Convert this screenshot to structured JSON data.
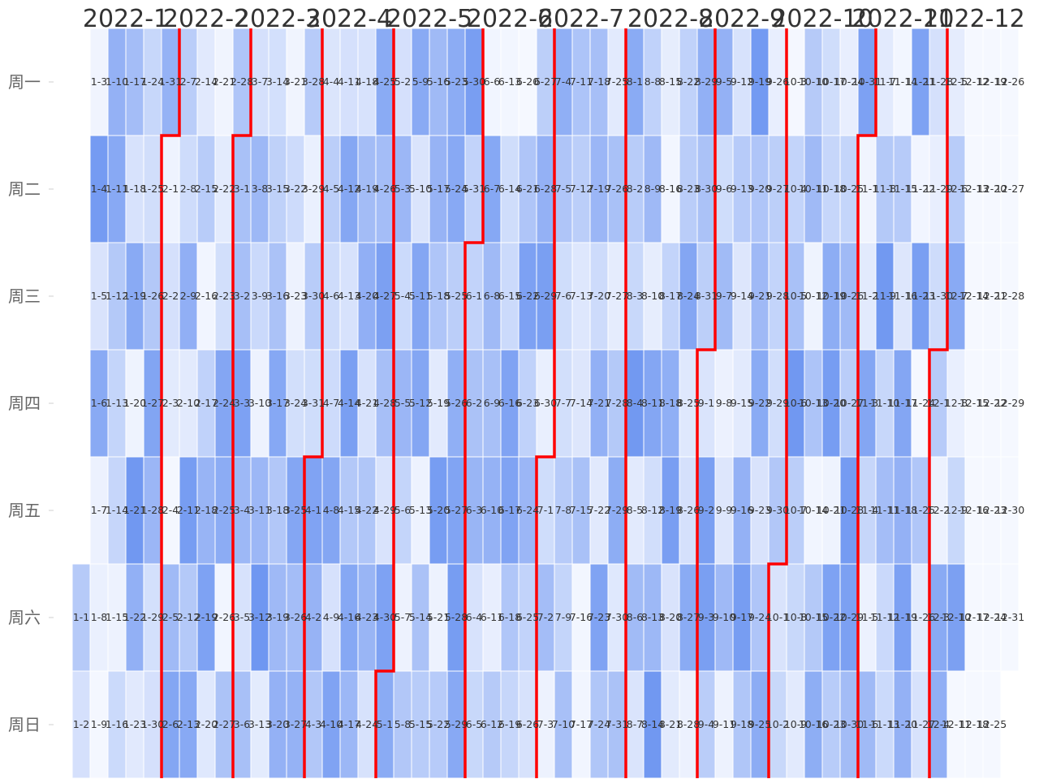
{
  "chart_data": {
    "type": "heatmap",
    "title": "",
    "year": 2022,
    "month_labels": [
      "2022-1",
      "2022-2",
      "2022-3",
      "2022-4",
      "2022-5",
      "2022-6",
      "2022-7",
      "2022-8",
      "2022-9",
      "2022-10",
      "2022-11",
      "2022-12"
    ],
    "weekday_labels": [
      "周一",
      "周二",
      "周三",
      "周四",
      "周五",
      "周六",
      "周日"
    ],
    "cell_label_format": "M-D",
    "color_scale": [
      "#f5f8ff",
      "#6e96f1"
    ],
    "value_range": [
      0,
      1
    ],
    "grid": false,
    "month_separators": true,
    "separator_color": "#ff0000",
    "values": [
      0.47,
      0.24,
      0.04,
      0.95,
      0.21,
      0.8,
      0.07,
      0.08,
      0.01,
      0.72,
      0.81,
      0.48,
      0.36,
      0.35,
      0.06,
      0.31,
      0.6,
      0.22,
      0.8,
      0.05,
      0.98,
      0.73,
      0.15,
      0.34,
      0.27,
      0.49,
      0.85,
      0.67,
      0.25,
      0.24,
      0.71,
      0.05,
      0.24,
      0.14,
      0.01,
      0.63,
      0.84,
      0.44,
      0.29,
      0.74,
      0.14,
      0.93,
      0.48,
      0.81,
      0.15,
      0.45,
      0.03,
      0.39,
      0.69,
      0.88,
      0.16,
      0.04,
      0.13,
      0.26,
      0.84,
      0.78,
      0.03,
      0.54,
      0.52,
      0.56,
      0.58,
      0.89,
      0.65,
      0.22,
      0.57,
      0.24,
      0.65,
      0.32,
      0.06,
      0.66,
      0.99,
      0.13,
      0.25,
      0.4,
      0.55,
      0.82,
      0.5,
      0.64,
      0.72,
      0.04,
      0.3,
      0.06,
      0.26,
      0.84,
      0.6,
      0.71,
      0.46,
      0.08,
      0.45,
      0.28,
      0.87,
      0.7,
      0.5,
      0.19,
      0.43,
      0.29,
      0.3,
      0.84,
      0.23,
      0.87,
      0.24,
      0.83,
      0.22,
      0.91,
      0.49,
      0.82,
      0.66,
      0.22,
      0.61,
      0.74,
      0.22,
      0.51,
      0.68,
      0.22,
      0.79,
      0.6,
      0.9,
      0.58,
      0.21,
      0.88,
      0.79,
      0.24,
      0.66,
      0.31,
      0.67,
      0.36,
      0.06,
      0.5,
      0.8,
      0.2,
      0.84,
      0.84,
      0.06,
      0.55,
      0.45,
      0.63,
      0.7,
      0.52,
      0.14,
      0.93,
      0.06,
      0.46,
      0.78,
      0.81,
      0.43,
      0.75,
      0.86,
      0.93,
      0.81,
      0.92,
      0.38,
      0.38,
      0.55,
      0.68,
      0.22,
      0.33,
      0.03,
      0.82,
      0.63,
      0.57,
      0.71,
      0.1,
      0.47,
      0.02,
      0.28,
      0.31,
      0.87,
      0.87,
      0.51,
      0.35,
      0.0,
      0.52,
      0.89,
      0.39,
      0.67,
      0.38,
      0.22,
      0.42,
      0.72,
      0.91,
      0.09,
      0.28,
      0.6,
      0.06,
      0.75,
      0.52,
      0.28,
      0.26,
      0.46,
      0.36,
      0.57,
      0.53,
      0.43,
      0.17,
      0.18,
      0.56,
      0.02,
      0.03,
      0.58,
      0.67,
      0.3,
      0.73,
      0.15,
      0.87,
      0.51,
      0.14,
      0.56,
      0.12,
      0.48,
      0.77,
      0.16,
      0.55,
      0.79,
      0.45,
      0.33,
      0.97,
      0.14,
      0.62,
      0.2,
      0.39,
      0.64,
      0.11,
      0.84,
      0.27,
      0.65,
      0.98,
      0.11,
      0.02,
      0.37,
      0.75,
      0.92,
      0.21,
      0.14,
      0.39,
      0.44,
      0.84,
      0.16,
      0.24,
      0.79,
      0.07,
      0.73,
      0.55,
      0.42,
      0.2,
      0.91,
      0.91,
      0.44,
      0.72,
      0.28,
      0.62,
      0.07,
      0.18,
      0.64,
      0.06,
      0.22,
      0.46,
      0.18,
      0.14,
      0.72,
      0.93,
      0.51,
      0.96,
      0.52,
      0.64,
      0.79,
      0.21,
      0.52,
      0.78,
      0.1,
      0.42,
      0.37,
      0.27,
      0.5,
      0.21,
      0.33,
      0.01,
      0.37,
      0.56,
      0.98,
      0.43,
      0.33,
      0.14,
      0.47,
      0.63,
      0.05,
      0.53,
      0.03,
      0.48,
      0.76,
      0.28,
      0.35,
      0.77,
      0.93,
      0.05,
      0.88,
      0.45,
      0.1,
      0.36,
      0.63,
      0.44,
      0.95,
      0.9,
      0.61,
      0.89,
      0.04,
      0.14,
      0.84,
      0.35,
      0.07,
      0.63,
      0.14,
      0.48,
      0.97,
      0.34,
      0.6,
      0.32,
      0.31,
      0.02,
      0.46,
      0.18,
      0.84,
      0.72,
      0.89,
      0.72,
      0.88,
      0.03,
      0.91,
      0.01,
      0.51,
      0.13,
      0.22,
      0.24,
      0.1,
      0.29,
      0.46,
      0.07,
      0.8,
      0.74,
      0.12,
      0.45,
      0.8,
      0.09,
      0.33,
      0.9
    ]
  }
}
